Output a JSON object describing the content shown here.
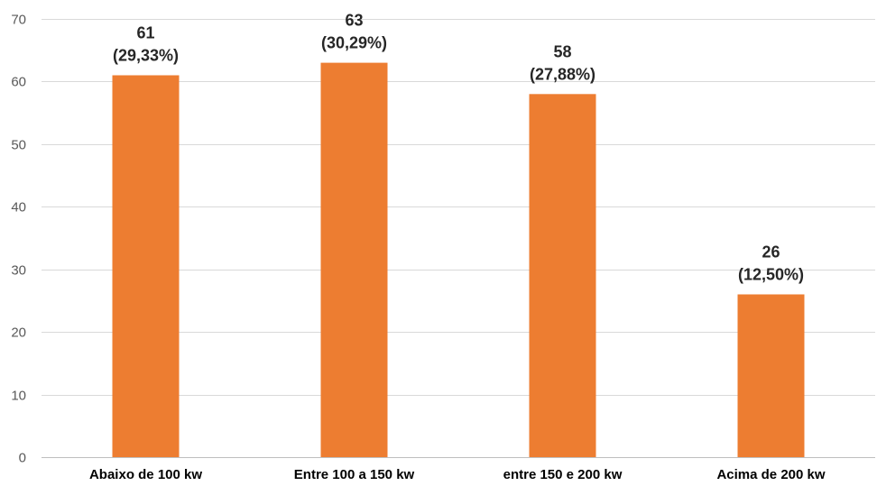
{
  "chart_data": {
    "type": "bar",
    "title": "",
    "xlabel": "",
    "ylabel": "",
    "categories": [
      "Abaixo de 100 kw",
      "Entre 100 a 150 kw",
      "entre 150 e 200 kw",
      "Acima de 200 kw"
    ],
    "values": [
      61,
      63,
      58,
      26
    ],
    "value_labels": [
      "61",
      "63",
      "58",
      "26"
    ],
    "percent_labels": [
      "(29,33%)",
      "(30,29%)",
      "(27,88%)",
      "(12,50%)"
    ],
    "ylim": [
      0,
      70
    ],
    "yticks": [
      "0",
      "10",
      "20",
      "30",
      "40",
      "50",
      "60",
      "70"
    ],
    "ytick_values": [
      0,
      10,
      20,
      30,
      40,
      50,
      60,
      70
    ],
    "grid": true,
    "legend": "none",
    "colors": {
      "bar": "#ED7D31",
      "grid": "#D9D9D9",
      "axis": "#BFBFBF"
    }
  }
}
